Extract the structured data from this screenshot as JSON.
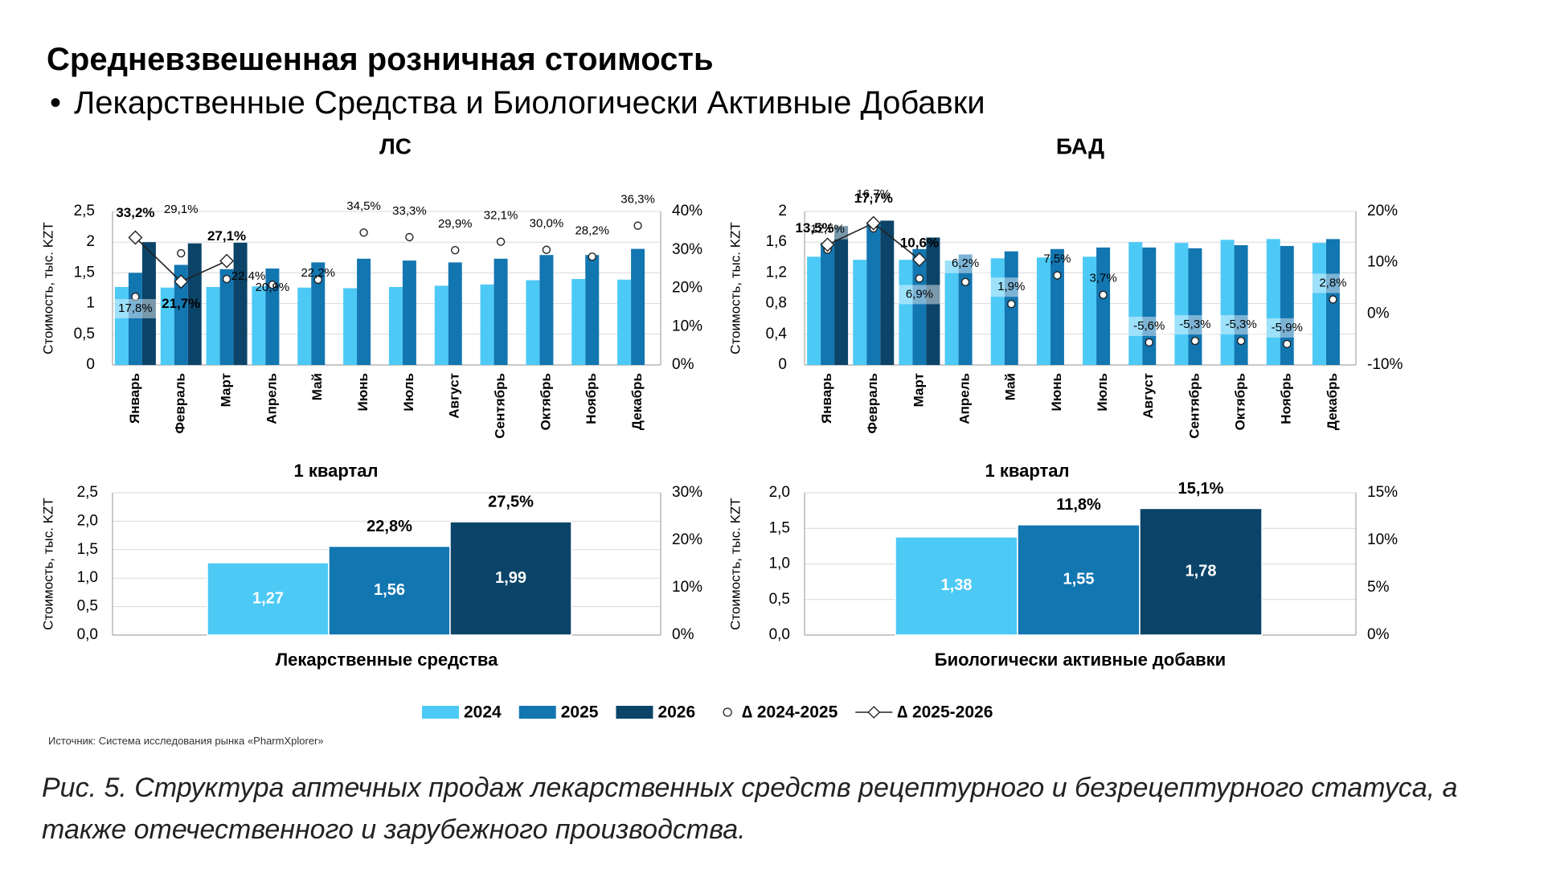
{
  "page": {
    "title": "Средневзвешенная розничная стоимость",
    "bullet": "•",
    "subtitle": "Лекарственные Средства и Биологически Активные Добавки",
    "source": "Источник: Система исследования рынка «PharmXplorer»",
    "caption": "Рис. 5. Структура аптечных продаж лекарственных средств рецептурного и безрецептурного статуса, а также отечественного и зарубежного производства."
  },
  "colors": {
    "2024": "#4dc9f6",
    "2025": "#1276b1",
    "2026": "#0b4468",
    "grid": "#d9d9d9",
    "axis": "#a6a6a6"
  },
  "legend": [
    {
      "label": "2024",
      "kind": "bar",
      "color_key": "2024"
    },
    {
      "label": "2025",
      "kind": "bar",
      "color_key": "2025"
    },
    {
      "label": "2026",
      "kind": "bar",
      "color_key": "2026"
    },
    {
      "label": "∆ 2024-2025",
      "kind": "circle"
    },
    {
      "label": "∆ 2025-2026",
      "kind": "diamond-line"
    }
  ],
  "chart_data": [
    {
      "type": "bar",
      "title": "ЛС",
      "ylabel": "Стоимость, тыс. KZT",
      "ylim": [
        0,
        2.5
      ],
      "y_ticks": [
        "0",
        "0,5",
        "1",
        "1,5",
        "2",
        "2,5"
      ],
      "y2lim": [
        0,
        40
      ],
      "y2_ticks": [
        "0%",
        "10%",
        "20%",
        "30%",
        "40%"
      ],
      "categories": [
        "Январь",
        "Февраль",
        "Март",
        "Апрель",
        "Май",
        "Июнь",
        "Июль",
        "Август",
        "Сентябрь",
        "Октябрь",
        "Ноябрь",
        "Декабрь"
      ],
      "series": [
        {
          "name": "2024",
          "values": [
            1.27,
            1.26,
            1.27,
            1.28,
            1.26,
            1.25,
            1.27,
            1.29,
            1.31,
            1.38,
            1.4,
            1.39
          ]
        },
        {
          "name": "2025",
          "values": [
            1.5,
            1.63,
            1.56,
            1.57,
            1.67,
            1.73,
            1.7,
            1.67,
            1.73,
            1.79,
            1.79,
            1.89
          ]
        },
        {
          "name": "2026",
          "values": [
            2.0,
            1.98,
            1.99,
            null,
            null,
            null,
            null,
            null,
            null,
            null,
            null,
            null
          ]
        }
      ],
      "delta_series": [
        {
          "name": "∆ 2024-2025",
          "values": [
            17.8,
            29.1,
            22.4,
            20.9,
            22.2,
            34.5,
            33.3,
            29.9,
            32.1,
            30.0,
            28.2,
            36.3
          ],
          "labels": [
            "17,8%",
            "29,1%",
            "22,4%",
            "20,9%",
            "22,2%",
            "34,5%",
            "33,3%",
            "29,9%",
            "32,1%",
            "30,0%",
            "28,2%",
            "36,3%"
          ]
        },
        {
          "name": "∆ 2025-2026",
          "values": [
            33.2,
            21.7,
            27.1,
            null,
            null,
            null,
            null,
            null,
            null,
            null,
            null,
            null
          ],
          "labels": [
            "33,2%",
            "21,7%",
            "27,1%",
            null,
            null,
            null,
            null,
            null,
            null,
            null,
            null,
            null
          ]
        }
      ]
    },
    {
      "type": "bar",
      "title": "БАД",
      "ylabel": "Стоимость, тыс. KZT",
      "ylim": [
        0,
        2
      ],
      "y_ticks": [
        "0",
        "0,4",
        "0,8",
        "1,2",
        "1,6",
        "2"
      ],
      "y2lim": [
        -10,
        20
      ],
      "y2_ticks": [
        "-10%",
        "0%",
        "10%",
        "20%"
      ],
      "categories": [
        "Январь",
        "Февраль",
        "Март",
        "Апрель",
        "Май",
        "Июнь",
        "Июль",
        "Август",
        "Сентябрь",
        "Октябрь",
        "Ноябрь",
        "Декабрь"
      ],
      "series": [
        {
          "name": "2024",
          "values": [
            1.41,
            1.37,
            1.37,
            1.36,
            1.39,
            1.4,
            1.41,
            1.6,
            1.59,
            1.63,
            1.64,
            1.59
          ]
        },
        {
          "name": "2025",
          "values": [
            1.59,
            1.86,
            1.51,
            1.44,
            1.48,
            1.51,
            1.53,
            1.53,
            1.52,
            1.56,
            1.55,
            1.64
          ]
        },
        {
          "name": "2026",
          "values": [
            1.81,
            1.88,
            1.66,
            null,
            null,
            null,
            null,
            null,
            null,
            null,
            null,
            null
          ]
        }
      ],
      "delta_series": [
        {
          "name": "∆ 2024-2025",
          "values": [
            12.5,
            16.7,
            6.9,
            6.2,
            1.9,
            7.5,
            3.7,
            -5.6,
            -5.3,
            -5.3,
            -5.9,
            2.8
          ],
          "labels": [
            "12,5%",
            "16,7%",
            "6,9%",
            "6,2%",
            "1,9%",
            "7,5%",
            "3,7%",
            "-5,6%",
            "-5,3%",
            "-5,3%",
            "-5,9%",
            "2,8%"
          ]
        },
        {
          "name": "∆ 2025-2026",
          "values": [
            13.5,
            17.7,
            10.6,
            null,
            null,
            null,
            null,
            null,
            null,
            null,
            null,
            null
          ],
          "labels": [
            "13,5%",
            "17,7%",
            "10,6%",
            null,
            null,
            null,
            null,
            null,
            null,
            null,
            null,
            null
          ]
        }
      ]
    },
    {
      "type": "bar",
      "title": "1 квартал",
      "xlabel": "Лекарственные средства",
      "ylabel": "Стоимость, тыс. KZT",
      "ylim": [
        0,
        2.5
      ],
      "y_ticks": [
        "0,0",
        "0,5",
        "1,0",
        "1,5",
        "2,0",
        "2,5"
      ],
      "y2lim": [
        0,
        30
      ],
      "y2_ticks": [
        "0%",
        "10%",
        "20%",
        "30%"
      ],
      "categories": [
        "2024",
        "2025",
        "2026"
      ],
      "values": [
        1.27,
        1.56,
        1.99
      ],
      "value_labels": [
        "1,27",
        "1,56",
        "1,99"
      ],
      "growth_labels": [
        null,
        "22,8%",
        "27,5%"
      ]
    },
    {
      "type": "bar",
      "title": "1 квартал",
      "xlabel": "Биологически активные добавки",
      "ylabel": "Стоимость, тыс. KZT",
      "ylim": [
        0,
        2.0
      ],
      "y_ticks": [
        "0,0",
        "0,5",
        "1,0",
        "1,5",
        "2,0"
      ],
      "y2lim": [
        0,
        15
      ],
      "y2_ticks": [
        "0%",
        "5%",
        "10%",
        "15%"
      ],
      "categories": [
        "2024",
        "2025",
        "2026"
      ],
      "values": [
        1.38,
        1.55,
        1.78
      ],
      "value_labels": [
        "1,38",
        "1,55",
        "1,78"
      ],
      "growth_labels": [
        null,
        "11,8%",
        "15,1%"
      ]
    }
  ]
}
